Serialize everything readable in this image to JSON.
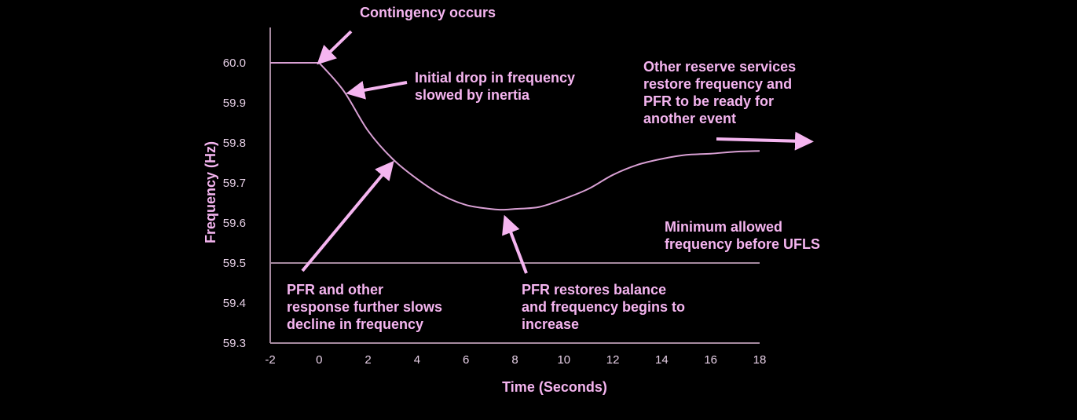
{
  "chart_data": {
    "type": "line",
    "title": "",
    "xlabel": "Time (Seconds)",
    "ylabel": "Frequency (Hz)",
    "xlim": [
      -2,
      18
    ],
    "ylim": [
      59.3,
      60.0
    ],
    "xticks": [
      "-2",
      "0",
      "2",
      "4",
      "6",
      "8",
      "10",
      "12",
      "14",
      "16",
      "18"
    ],
    "yticks": [
      "60.0",
      "59.9",
      "59.8",
      "59.7",
      "59.6",
      "59.5",
      "59.4",
      "59.3"
    ],
    "grid": false,
    "reference_line": {
      "y": 59.5
    },
    "series": [
      {
        "name": "Frequency",
        "x": [
          -2,
          0,
          1,
          2,
          3,
          4,
          5,
          6,
          7,
          7.5,
          8,
          9,
          10,
          11,
          12,
          13,
          14,
          15,
          16,
          17,
          18
        ],
        "y": [
          60.0,
          60.0,
          59.93,
          59.83,
          59.76,
          59.71,
          59.67,
          59.645,
          59.635,
          59.633,
          59.635,
          59.64,
          59.66,
          59.685,
          59.72,
          59.745,
          59.76,
          59.77,
          59.773,
          59.778,
          59.78
        ]
      }
    ],
    "colors": {
      "line": "#d9a0d4",
      "axis": "#a68aa0",
      "annotation": "#f5b5f0",
      "tick": "#e6cfe6"
    },
    "annotations": [
      {
        "id": "contingency",
        "text": "Contingency occurs"
      },
      {
        "id": "inertia",
        "text": "Initial drop in frequency\nslowed by inertia"
      },
      {
        "id": "reserve",
        "text": "Other reserve services\nrestore frequency and\nPFR to be ready for\nanother event"
      },
      {
        "id": "minimum",
        "text": "Minimum allowed\nfrequency before UFLS"
      },
      {
        "id": "pfr_other",
        "text": "PFR and other\nresponse further slows\ndecline in frequency"
      },
      {
        "id": "pfr_restore",
        "text": "PFR restores balance\nand frequency begins to\nincrease"
      }
    ]
  }
}
